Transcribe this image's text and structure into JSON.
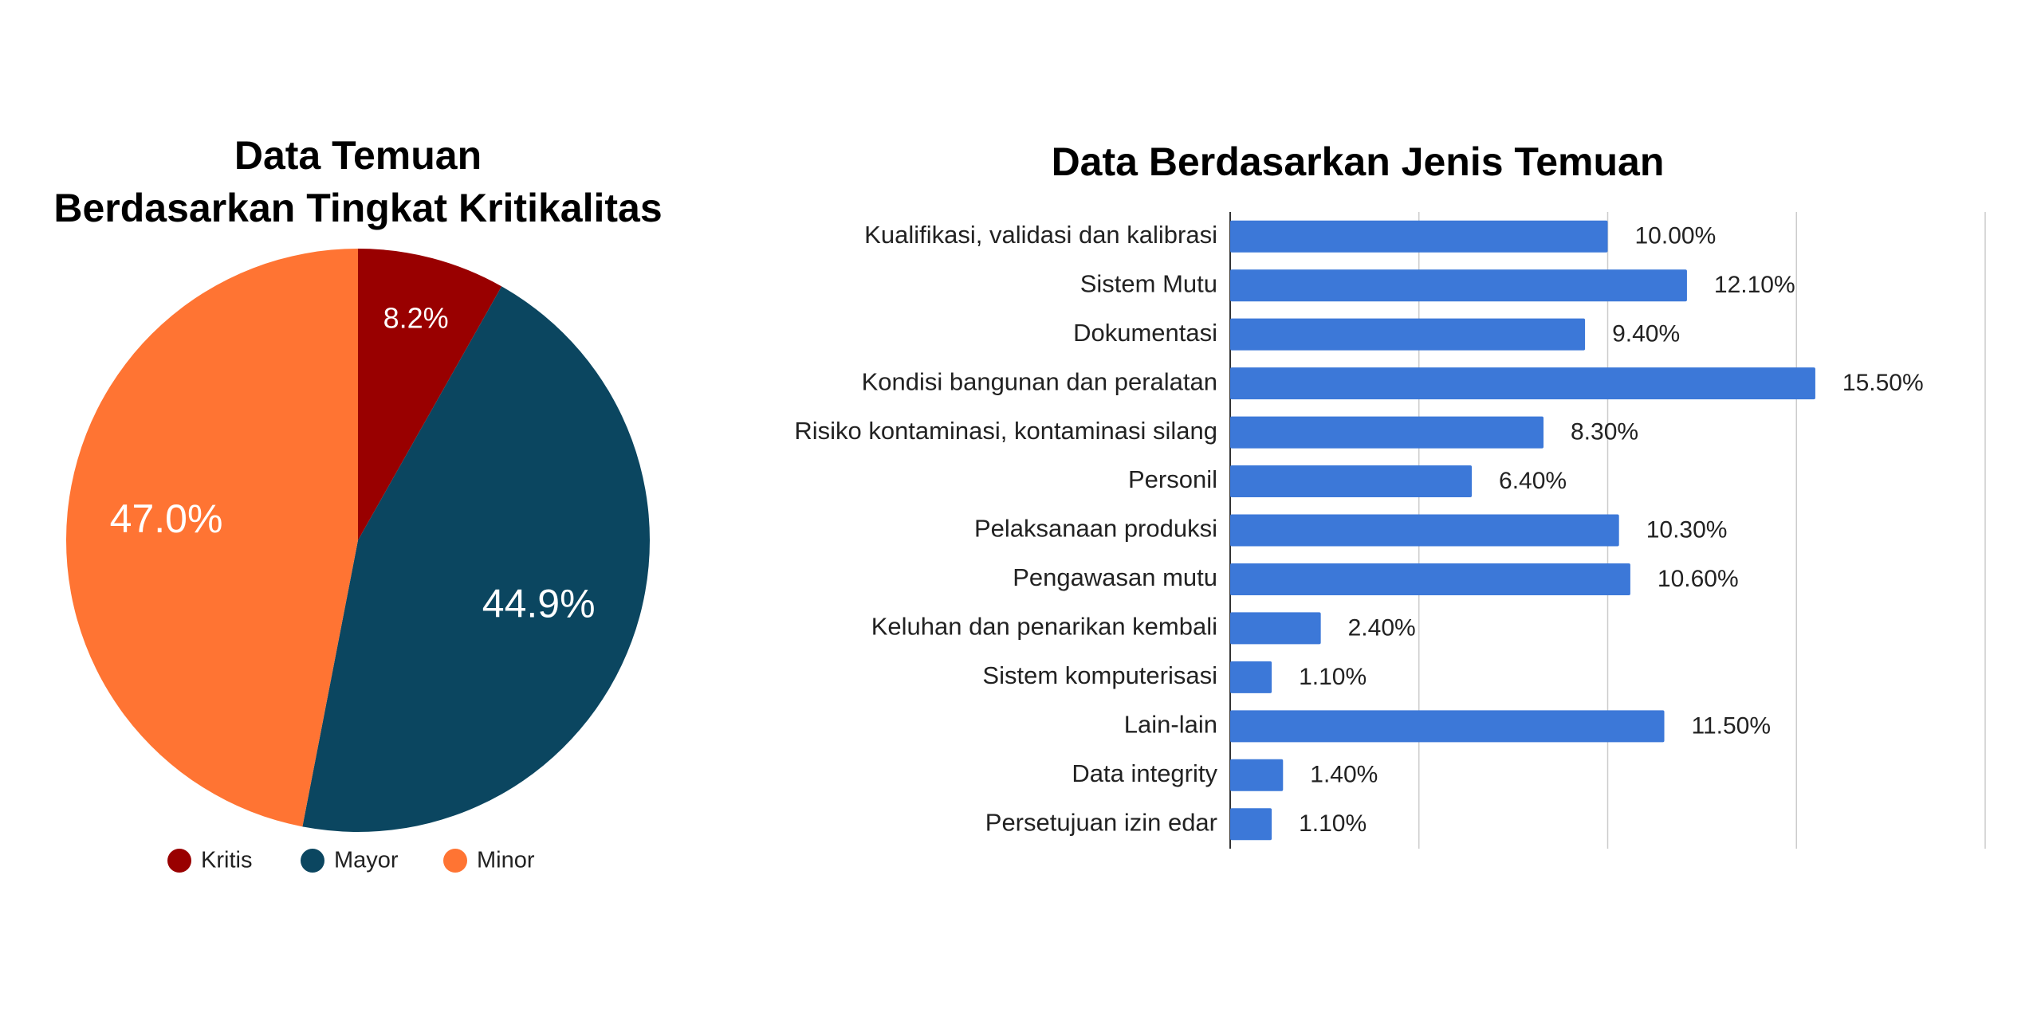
{
  "chart_data": [
    {
      "type": "pie",
      "title": [
        "Data Temuan",
        "Berdasarkan Tingkat Kritikalitas"
      ],
      "categories": [
        "Kritis",
        "Mayor",
        "Minor"
      ],
      "values": [
        8.2,
        44.9,
        47.0
      ],
      "value_labels": [
        "8.2%",
        "44.9%",
        "47.0%"
      ],
      "colors": [
        "#990000",
        "#0b4660",
        "#ff7433"
      ],
      "legend": "bottom"
    },
    {
      "type": "hbar",
      "title": "Data Berdasarkan Jenis Temuan",
      "categories": [
        "Kualifikasi, validasi dan kalibrasi",
        "Sistem Mutu",
        "Dokumentasi",
        "Kondisi bangunan dan peralatan",
        "Risiko kontaminasi, kontaminasi silang",
        "Personil",
        "Pelaksanaan produksi",
        "Pengawasan mutu",
        "Keluhan dan penarikan kembali",
        "Sistem komputerisasi",
        "Lain-lain",
        "Data integrity",
        "Persetujuan izin edar"
      ],
      "values": [
        10.0,
        12.1,
        9.4,
        15.5,
        8.3,
        6.4,
        10.3,
        10.6,
        2.4,
        1.1,
        11.5,
        1.4,
        1.1
      ],
      "value_labels": [
        "10.00%",
        "12.10%",
        "9.40%",
        "15.50%",
        "8.30%",
        "6.40%",
        "10.30%",
        "10.60%",
        "2.40%",
        "1.10%",
        "11.50%",
        "1.40%",
        "1.10%"
      ],
      "color": "#3c78d8",
      "xlim": [
        0,
        20
      ],
      "xticks": [
        0,
        5,
        10,
        15,
        20
      ],
      "grid": true
    }
  ]
}
